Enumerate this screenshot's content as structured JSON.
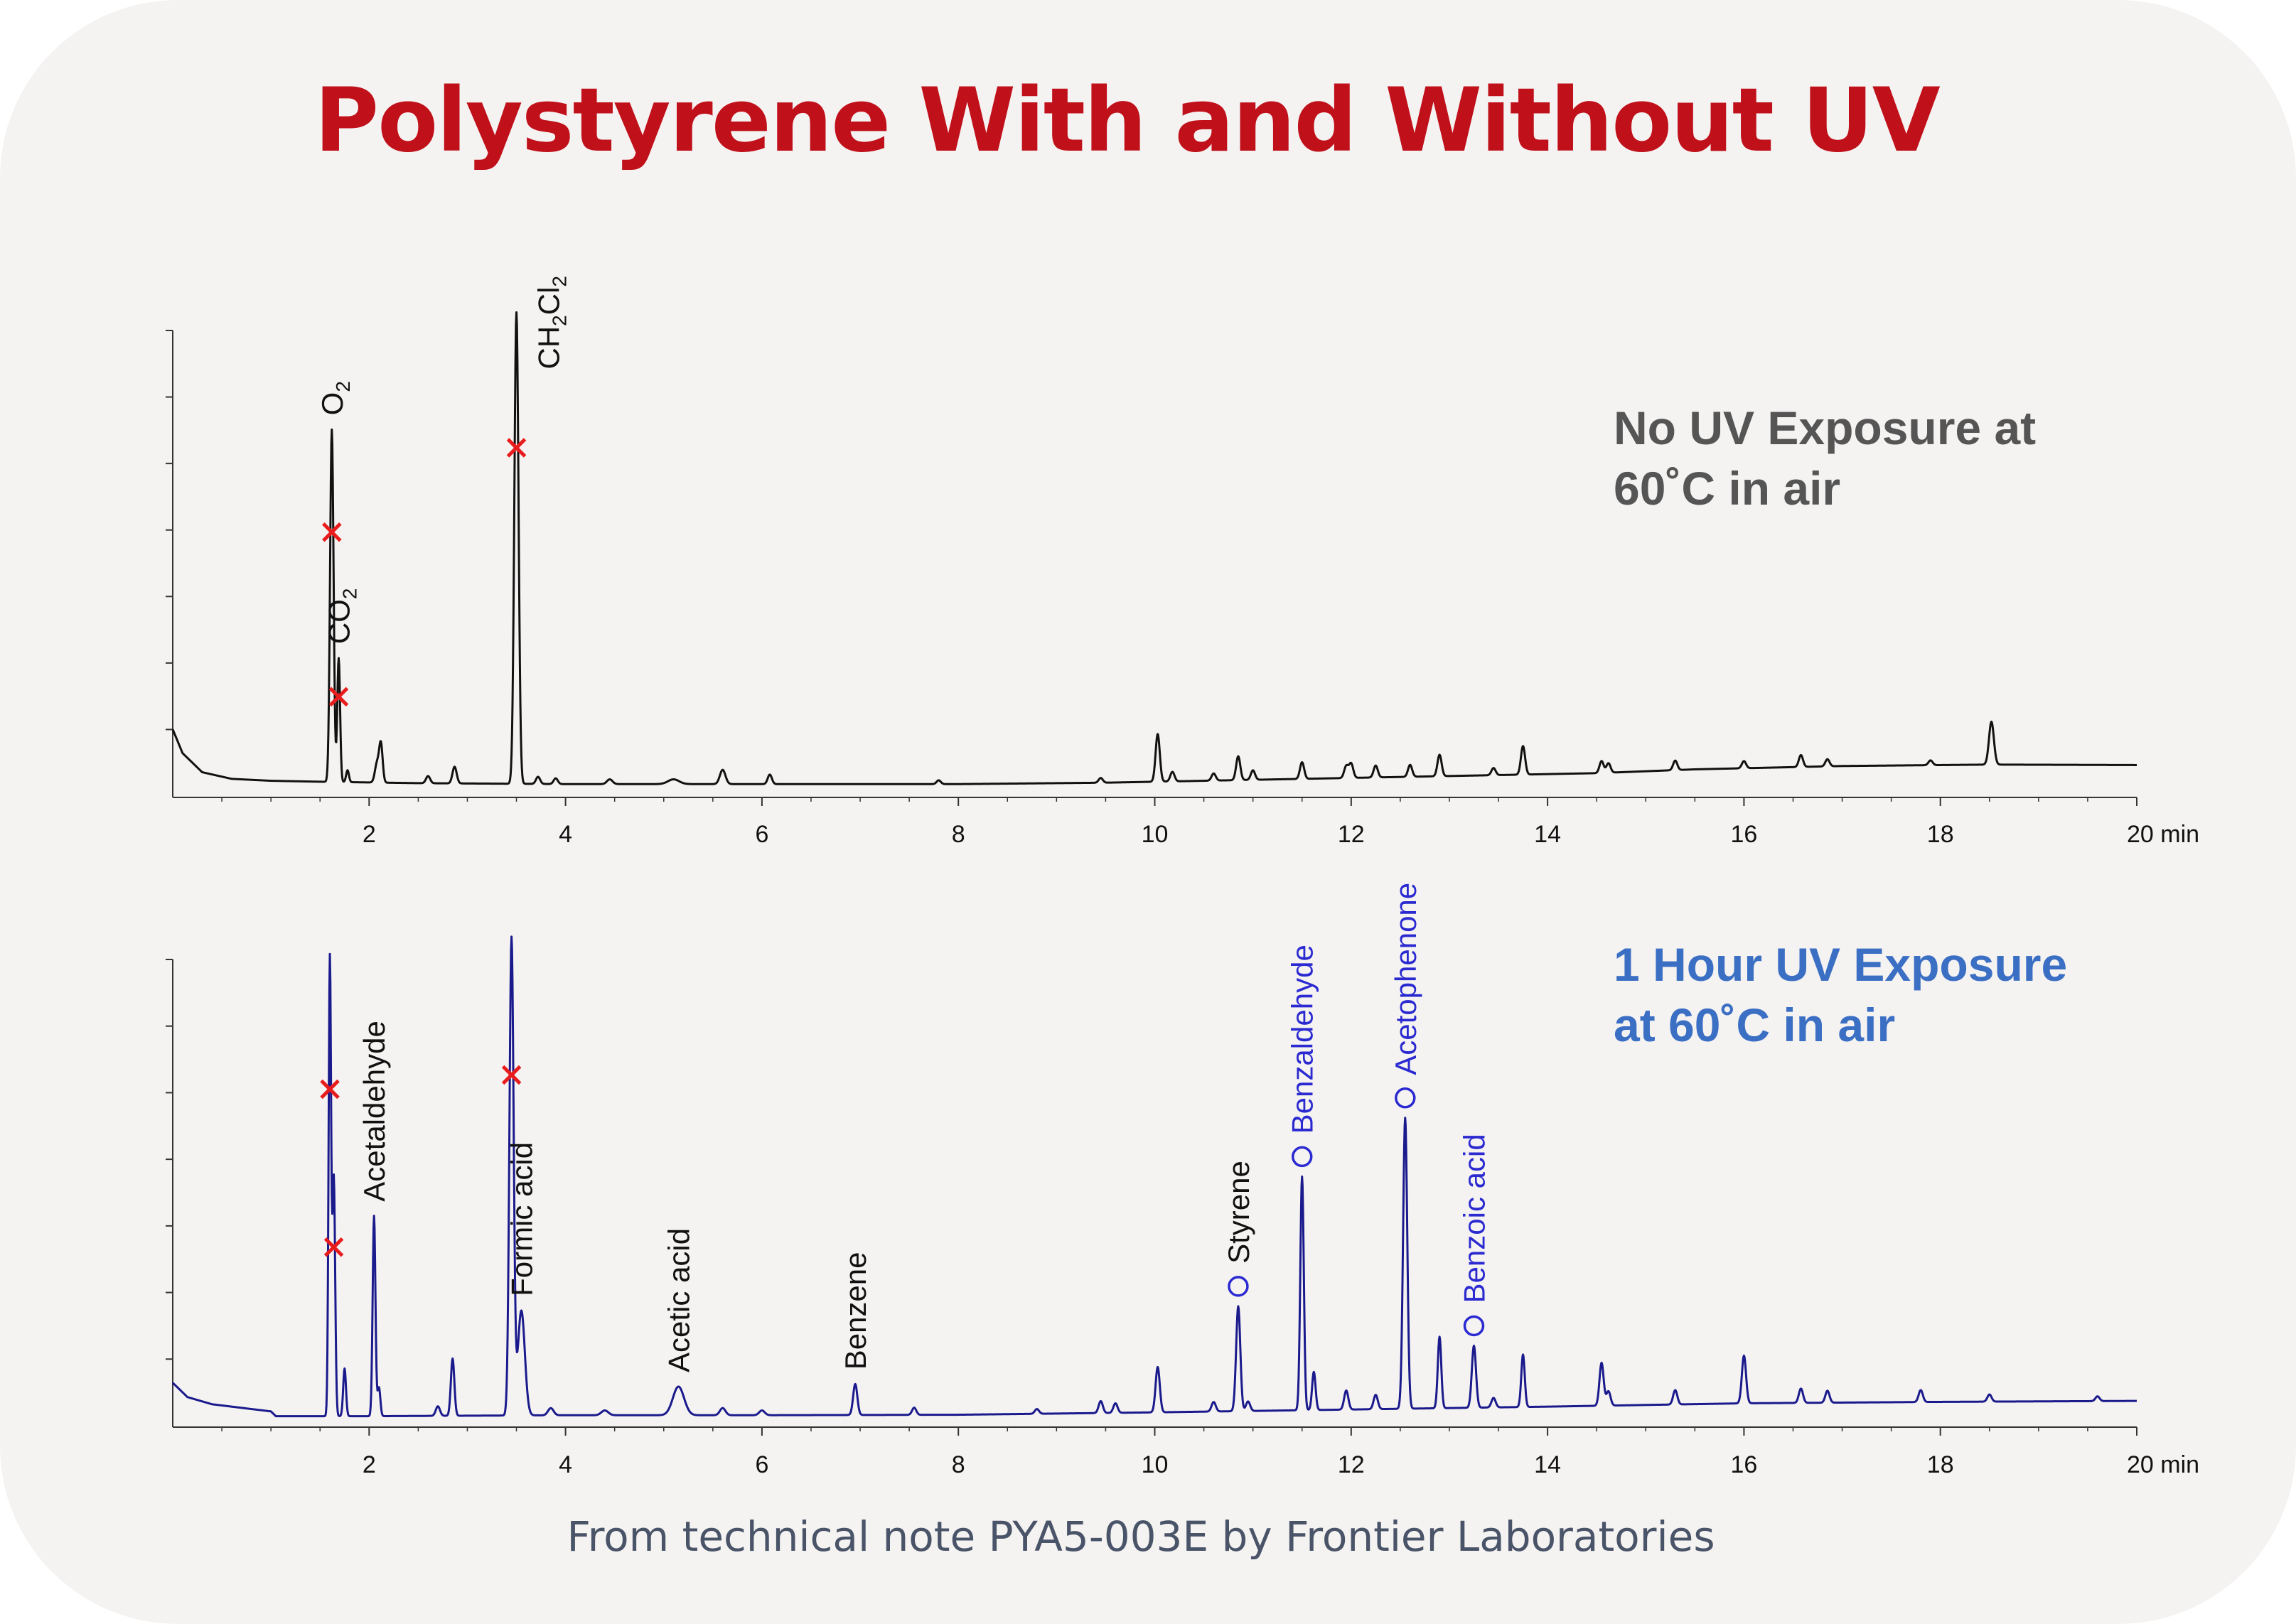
{
  "title": "Polystyrene With and Without UV",
  "footer": "From technical note PYA5-003E  by Frontier Laboratories",
  "colors": {
    "title": "#c0101a",
    "top_trace": "#111111",
    "bottom_trace": "#1a1a8c",
    "top_note": "#555555",
    "bottom_note": "#3b6fc4",
    "blue_label": "#2a2ad0",
    "marker_x": "#e81c1c"
  },
  "chart_data": [
    {
      "type": "line",
      "id": "no-uv",
      "annotation": [
        "No UV Exposure at",
        "60˚C in air"
      ],
      "xunit": "min",
      "xlim": [
        0,
        20
      ],
      "ylim": [
        0,
        100
      ],
      "xticks": [
        2,
        4,
        6,
        8,
        10,
        12,
        14,
        16,
        18,
        20
      ],
      "yticks_count": 7,
      "baseline": [
        [
          0.0,
          14
        ],
        [
          0.1,
          9
        ],
        [
          0.3,
          5
        ],
        [
          0.6,
          3.6
        ],
        [
          1.0,
          3.2
        ],
        [
          1.5,
          3.0
        ],
        [
          2.5,
          2.7
        ],
        [
          4,
          2.5
        ],
        [
          6,
          2.5
        ],
        [
          8,
          2.5
        ],
        [
          9.5,
          2.8
        ],
        [
          11,
          3.4
        ],
        [
          13,
          4.2
        ],
        [
          14.5,
          4.8
        ],
        [
          15.5,
          5.6
        ],
        [
          17,
          6.3
        ],
        [
          18.5,
          6.6
        ],
        [
          20,
          6.5
        ]
      ],
      "peaks": [
        {
          "t": 1.62,
          "h": 74,
          "w": 0.025,
          "label": "O",
          "sub": "2",
          "marker": "x",
          "color": "black"
        },
        {
          "t": 1.69,
          "h": 26,
          "w": 0.02,
          "label": "CO",
          "sub": "2",
          "marker": "x",
          "color": "black"
        },
        {
          "t": 1.78,
          "h": 2.5,
          "w": 0.02
        },
        {
          "t": 2.08,
          "h": 4,
          "w": 0.03
        },
        {
          "t": 2.12,
          "h": 8,
          "w": 0.025
        },
        {
          "t": 2.6,
          "h": 1.5,
          "w": 0.03
        },
        {
          "t": 2.87,
          "h": 3.5,
          "w": 0.03
        },
        {
          "t": 3.5,
          "h": 99,
          "w": 0.03,
          "label": "CH",
          "sub": "2",
          "label2": "Cl",
          "sub2": "2",
          "marker": "x",
          "color": "black"
        },
        {
          "t": 3.72,
          "h": 1.5,
          "w": 0.03
        },
        {
          "t": 3.9,
          "h": 1.2,
          "w": 0.03
        },
        {
          "t": 4.45,
          "h": 1,
          "w": 0.04
        },
        {
          "t": 5.1,
          "h": 1,
          "w": 0.08
        },
        {
          "t": 5.6,
          "h": 3,
          "w": 0.04
        },
        {
          "t": 6.08,
          "h": 2,
          "w": 0.03
        },
        {
          "t": 7.8,
          "h": 0.8,
          "w": 0.03
        },
        {
          "t": 9.45,
          "h": 1,
          "w": 0.03
        },
        {
          "t": 10.03,
          "h": 10,
          "w": 0.03
        },
        {
          "t": 10.18,
          "h": 2,
          "w": 0.03
        },
        {
          "t": 10.6,
          "h": 1.5,
          "w": 0.03
        },
        {
          "t": 10.85,
          "h": 5,
          "w": 0.03
        },
        {
          "t": 11.0,
          "h": 2,
          "w": 0.03
        },
        {
          "t": 11.5,
          "h": 3.5,
          "w": 0.03
        },
        {
          "t": 11.95,
          "h": 2.5,
          "w": 0.03
        },
        {
          "t": 12.0,
          "h": 3,
          "w": 0.03
        },
        {
          "t": 12.25,
          "h": 2.5,
          "w": 0.03
        },
        {
          "t": 12.6,
          "h": 2.5,
          "w": 0.03
        },
        {
          "t": 12.9,
          "h": 4.5,
          "w": 0.03
        },
        {
          "t": 13.45,
          "h": 1.5,
          "w": 0.03
        },
        {
          "t": 13.75,
          "h": 6,
          "w": 0.03
        },
        {
          "t": 14.55,
          "h": 2.5,
          "w": 0.03
        },
        {
          "t": 14.62,
          "h": 2,
          "w": 0.03
        },
        {
          "t": 15.3,
          "h": 2,
          "w": 0.03
        },
        {
          "t": 16.0,
          "h": 1.5,
          "w": 0.03
        },
        {
          "t": 16.58,
          "h": 2.5,
          "w": 0.03
        },
        {
          "t": 16.85,
          "h": 1.5,
          "w": 0.03
        },
        {
          "t": 17.9,
          "h": 1,
          "w": 0.03
        },
        {
          "t": 18.52,
          "h": 9,
          "w": 0.035
        }
      ]
    },
    {
      "type": "line",
      "id": "uv-1h",
      "annotation": [
        "1 Hour UV Exposure",
        "at 60˚C in air"
      ],
      "xunit": "min",
      "xlim": [
        0,
        20
      ],
      "ylim": [
        0,
        100
      ],
      "xticks": [
        2,
        4,
        6,
        8,
        10,
        12,
        14,
        16,
        18,
        20
      ],
      "yticks_count": 7,
      "baseline": [
        [
          0.0,
          9
        ],
        [
          0.15,
          6
        ],
        [
          0.4,
          4.5
        ],
        [
          1.0,
          3
        ],
        [
          1.05,
          2
        ],
        [
          2,
          2
        ],
        [
          4,
          2.2
        ],
        [
          6,
          2.2
        ],
        [
          8,
          2.3
        ],
        [
          10,
          2.8
        ],
        [
          12,
          3.4
        ],
        [
          14,
          4.0
        ],
        [
          16,
          4.7
        ],
        [
          18,
          5.0
        ],
        [
          20,
          5.2
        ]
      ],
      "peaks": [
        {
          "t": 1.6,
          "h": 96,
          "w": 0.018,
          "marker": "x",
          "color": "black"
        },
        {
          "t": 1.64,
          "h": 50,
          "w": 0.02,
          "marker": "x"
        },
        {
          "t": 1.75,
          "h": 10,
          "w": 0.02
        },
        {
          "t": 2.05,
          "h": 42,
          "w": 0.02,
          "label": "Acetaldehyde",
          "color": "black"
        },
        {
          "t": 2.1,
          "h": 6,
          "w": 0.02
        },
        {
          "t": 2.7,
          "h": 2,
          "w": 0.03
        },
        {
          "t": 2.85,
          "h": 12,
          "w": 0.025
        },
        {
          "t": 3.45,
          "h": 100,
          "w": 0.03,
          "marker": "x"
        },
        {
          "t": 3.55,
          "h": 22,
          "w": 0.05,
          "label": "Formic acid",
          "color": "black"
        },
        {
          "t": 3.85,
          "h": 1.5,
          "w": 0.04
        },
        {
          "t": 4.4,
          "h": 1,
          "w": 0.05
        },
        {
          "t": 5.15,
          "h": 6,
          "w": 0.08,
          "label": "Acetic acid",
          "color": "black"
        },
        {
          "t": 5.6,
          "h": 1.5,
          "w": 0.04
        },
        {
          "t": 6.0,
          "h": 1,
          "w": 0.04
        },
        {
          "t": 6.95,
          "h": 6.5,
          "w": 0.03,
          "label": "Benzene",
          "color": "black"
        },
        {
          "t": 7.55,
          "h": 1.5,
          "w": 0.03
        },
        {
          "t": 8.8,
          "h": 1,
          "w": 0.03
        },
        {
          "t": 9.45,
          "h": 2.5,
          "w": 0.03
        },
        {
          "t": 9.6,
          "h": 2,
          "w": 0.03
        },
        {
          "t": 10.03,
          "h": 9.5,
          "w": 0.03
        },
        {
          "t": 10.6,
          "h": 2,
          "w": 0.03
        },
        {
          "t": 10.85,
          "h": 22,
          "w": 0.03,
          "label": "Styrene",
          "marker": "o",
          "color": "black"
        },
        {
          "t": 10.95,
          "h": 2,
          "w": 0.03
        },
        {
          "t": 11.5,
          "h": 49,
          "w": 0.025,
          "label": "Benzaldehyde",
          "marker": "o",
          "color": "blue"
        },
        {
          "t": 11.62,
          "h": 8,
          "w": 0.025
        },
        {
          "t": 11.95,
          "h": 4,
          "w": 0.03
        },
        {
          "t": 12.25,
          "h": 3,
          "w": 0.03
        },
        {
          "t": 12.55,
          "h": 61,
          "w": 0.03,
          "label": "Acetophenone",
          "marker": "o",
          "color": "blue"
        },
        {
          "t": 12.9,
          "h": 15,
          "w": 0.025
        },
        {
          "t": 13.25,
          "h": 13,
          "w": 0.03,
          "label": "Benzoic acid",
          "marker": "o",
          "color": "blue"
        },
        {
          "t": 13.45,
          "h": 2,
          "w": 0.03
        },
        {
          "t": 13.75,
          "h": 11,
          "w": 0.025
        },
        {
          "t": 14.55,
          "h": 9,
          "w": 0.03
        },
        {
          "t": 14.62,
          "h": 3,
          "w": 0.03
        },
        {
          "t": 15.3,
          "h": 3,
          "w": 0.03
        },
        {
          "t": 16.0,
          "h": 10,
          "w": 0.03
        },
        {
          "t": 16.58,
          "h": 3,
          "w": 0.03
        },
        {
          "t": 16.85,
          "h": 2.5,
          "w": 0.03
        },
        {
          "t": 17.8,
          "h": 2.5,
          "w": 0.03
        },
        {
          "t": 18.5,
          "h": 1.5,
          "w": 0.03
        },
        {
          "t": 19.6,
          "h": 1,
          "w": 0.03
        }
      ]
    }
  ]
}
